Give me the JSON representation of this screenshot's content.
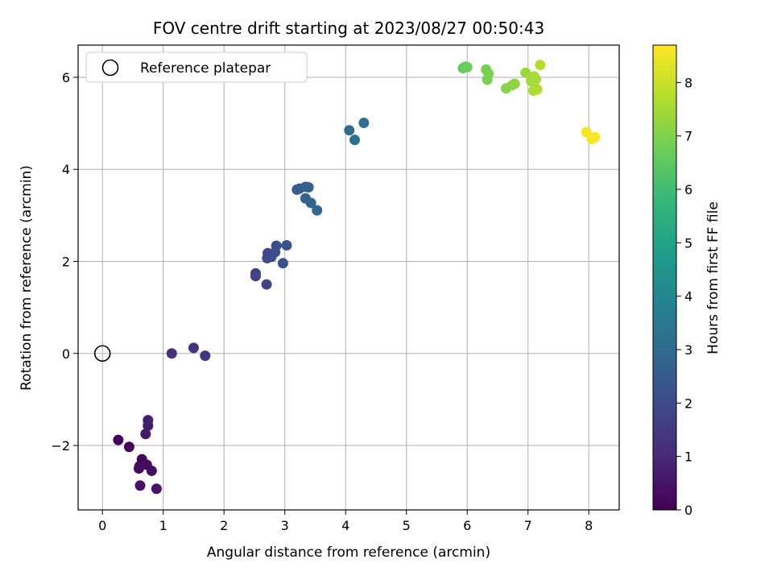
{
  "chart_data": {
    "type": "scatter",
    "title": "FOV centre drift starting at 2023/08/27 00:50:43",
    "xlabel": "Angular distance from reference (arcmin)",
    "ylabel": "Rotation from reference (arcmin)",
    "xlim": [
      -0.4,
      8.5
    ],
    "ylim": [
      -3.4,
      6.7
    ],
    "xticks": [
      0,
      1,
      2,
      3,
      4,
      5,
      6,
      7,
      8
    ],
    "yticks": [
      -2,
      0,
      2,
      4,
      6
    ],
    "grid": true,
    "legend": {
      "position": "top-left",
      "entries": [
        "Reference platepar"
      ]
    },
    "reference_point": {
      "x": 0,
      "y": 0
    },
    "colorbar": {
      "label": "Hours from first FF file",
      "colormap": "viridis",
      "range": [
        0,
        8.7
      ],
      "ticks": [
        0,
        1,
        2,
        3,
        4,
        5,
        6,
        7,
        8
      ]
    },
    "point_color_stops": [
      "#440154",
      "#482878",
      "#3e4989",
      "#31688e",
      "#26828e",
      "#1f9e89",
      "#35b779",
      "#6ece58",
      "#b5de2b",
      "#fde725"
    ],
    "series": [
      {
        "points": [
          {
            "x": 0.26,
            "y": -1.88,
            "t": 0.05
          },
          {
            "x": 0.44,
            "y": -2.03,
            "t": 0.1
          },
          {
            "x": 0.65,
            "y": -2.3,
            "t": 0.15
          },
          {
            "x": 0.61,
            "y": -2.45,
            "t": 0.2
          },
          {
            "x": 0.6,
            "y": -2.5,
            "t": 0.25
          },
          {
            "x": 0.73,
            "y": -2.42,
            "t": 0.3
          },
          {
            "x": 0.81,
            "y": -2.55,
            "t": 0.35
          },
          {
            "x": 0.62,
            "y": -2.87,
            "t": 0.4
          },
          {
            "x": 0.89,
            "y": -2.94,
            "t": 0.45
          },
          {
            "x": 0.71,
            "y": -1.75,
            "t": 0.6
          },
          {
            "x": 0.75,
            "y": -1.57,
            "t": 0.65
          },
          {
            "x": 0.75,
            "y": -1.45,
            "t": 0.7
          },
          {
            "x": 1.14,
            "y": 0.0,
            "t": 1.2
          },
          {
            "x": 1.5,
            "y": 0.12,
            "t": 1.3
          },
          {
            "x": 1.69,
            "y": -0.05,
            "t": 1.4
          },
          {
            "x": 2.52,
            "y": 1.74,
            "t": 1.7
          },
          {
            "x": 2.52,
            "y": 1.68,
            "t": 1.75
          },
          {
            "x": 2.7,
            "y": 1.5,
            "t": 1.8
          },
          {
            "x": 2.72,
            "y": 2.18,
            "t": 1.9
          },
          {
            "x": 2.71,
            "y": 2.07,
            "t": 1.95
          },
          {
            "x": 2.78,
            "y": 2.1,
            "t": 2.0
          },
          {
            "x": 2.84,
            "y": 2.2,
            "t": 2.05
          },
          {
            "x": 2.86,
            "y": 2.34,
            "t": 2.1
          },
          {
            "x": 2.97,
            "y": 1.96,
            "t": 2.15
          },
          {
            "x": 3.03,
            "y": 2.35,
            "t": 2.2
          },
          {
            "x": 3.2,
            "y": 3.56,
            "t": 2.55
          },
          {
            "x": 3.24,
            "y": 3.58,
            "t": 2.6
          },
          {
            "x": 3.34,
            "y": 3.62,
            "t": 2.65
          },
          {
            "x": 3.39,
            "y": 3.61,
            "t": 2.7
          },
          {
            "x": 3.34,
            "y": 3.37,
            "t": 2.75
          },
          {
            "x": 3.43,
            "y": 3.27,
            "t": 2.8
          },
          {
            "x": 3.53,
            "y": 3.11,
            "t": 2.85
          },
          {
            "x": 4.06,
            "y": 4.85,
            "t": 3.1
          },
          {
            "x": 4.15,
            "y": 4.64,
            "t": 3.15
          },
          {
            "x": 4.3,
            "y": 5.01,
            "t": 3.25
          },
          {
            "x": 5.93,
            "y": 6.2,
            "t": 6.6
          },
          {
            "x": 5.97,
            "y": 6.23,
            "t": 6.65
          },
          {
            "x": 6.0,
            "y": 6.22,
            "t": 6.7
          },
          {
            "x": 6.31,
            "y": 6.17,
            "t": 6.85
          },
          {
            "x": 6.35,
            "y": 6.08,
            "t": 6.9
          },
          {
            "x": 6.33,
            "y": 5.95,
            "t": 6.95
          },
          {
            "x": 6.64,
            "y": 5.76,
            "t": 7.1
          },
          {
            "x": 6.74,
            "y": 5.83,
            "t": 7.15
          },
          {
            "x": 6.78,
            "y": 5.86,
            "t": 7.2
          },
          {
            "x": 6.96,
            "y": 6.1,
            "t": 7.4
          },
          {
            "x": 7.05,
            "y": 5.92,
            "t": 7.45
          },
          {
            "x": 7.1,
            "y": 6.02,
            "t": 7.5
          },
          {
            "x": 7.13,
            "y": 5.96,
            "t": 7.55
          },
          {
            "x": 7.09,
            "y": 5.71,
            "t": 7.6
          },
          {
            "x": 7.15,
            "y": 5.74,
            "t": 7.65
          },
          {
            "x": 7.2,
            "y": 6.27,
            "t": 7.7
          },
          {
            "x": 7.96,
            "y": 4.81,
            "t": 8.55
          },
          {
            "x": 8.05,
            "y": 4.66,
            "t": 8.6
          },
          {
            "x": 8.1,
            "y": 4.7,
            "t": 8.65
          }
        ]
      }
    ]
  }
}
